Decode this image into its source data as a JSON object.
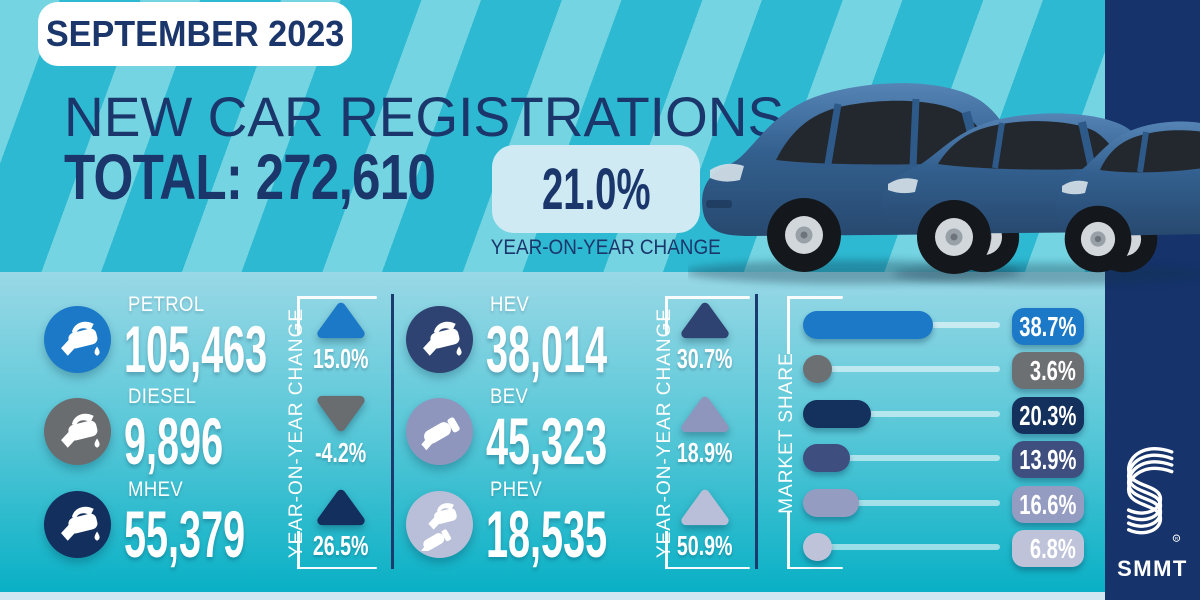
{
  "header": {
    "badge": "SEPTEMBER 2023",
    "title": "NEW CAR REGISTRATIONS",
    "total_label": "TOTAL:",
    "total_value": "272,610",
    "yoy_value": "21.0%",
    "yoy_caption": "YEAR-ON-YEAR CHANGE"
  },
  "labels": {
    "yoy_column": "YEAR-ON-YEAR CHANGE",
    "market_share": "MARKET SHARE"
  },
  "fuel_stats": [
    {
      "id": "petrol",
      "label": "PETROL",
      "value": "105,463",
      "change": "15.0%",
      "direction": "up",
      "color": "#1b79c8",
      "icon": "fuel-pump-nozzle"
    },
    {
      "id": "diesel",
      "label": "DIESEL",
      "value": "9,896",
      "change": "-4.2%",
      "direction": "down",
      "color": "#6a6d70",
      "icon": "fuel-pump-nozzle"
    },
    {
      "id": "mhev",
      "label": "MHEV",
      "value": "55,379",
      "change": "26.5%",
      "direction": "up",
      "color": "#132f5e",
      "icon": "fuel-pump-nozzle"
    },
    {
      "id": "hev",
      "label": "HEV",
      "value": "38,014",
      "change": "30.7%",
      "direction": "up",
      "color": "#2e4371",
      "icon": "fuel-pump-nozzle"
    },
    {
      "id": "bev",
      "label": "BEV",
      "value": "45,323",
      "change": "18.9%",
      "direction": "up",
      "color": "#8e96bd",
      "icon": "charging-plug"
    },
    {
      "id": "phev",
      "label": "PHEV",
      "value": "18,535",
      "change": "50.9%",
      "direction": "up",
      "color": "#b9bfd8",
      "icon": "nozzle-and-plug"
    }
  ],
  "market_share": {
    "items": [
      {
        "fuel": "PETROL",
        "value": "38.7%",
        "pct": 38.7,
        "color": "#1b79c8"
      },
      {
        "fuel": "DIESEL",
        "value": "3.6%",
        "pct": 3.6,
        "color": "#6d7073"
      },
      {
        "fuel": "MHEV",
        "value": "20.3%",
        "pct": 20.3,
        "color": "#14305c"
      },
      {
        "fuel": "HEV",
        "value": "13.9%",
        "pct": 13.9,
        "color": "#3e4e7f"
      },
      {
        "fuel": "BEV",
        "value": "16.6%",
        "pct": 16.6,
        "color": "#949cc2"
      },
      {
        "fuel": "PHEV",
        "value": "6.8%",
        "pct": 6.8,
        "color": "#bec3da"
      }
    ]
  },
  "logo": {
    "name": "SMMT"
  },
  "colors": {
    "navy": "#1a366b",
    "teal_base": "#2eb9d2",
    "teal_stripe": "#74d4e2",
    "panel_top": "#99d8e6",
    "panel_bottom": "#09b0c5",
    "bottom_strip": "#cfe7f2",
    "yoy_box_bg": "#cfeaf3",
    "sidebar": "#16336b"
  },
  "chart_data": [
    {
      "type": "table",
      "title": "NEW CAR REGISTRATIONS - SEPTEMBER 2023",
      "total_registrations": 272610,
      "total_yoy_change_pct": 21.0,
      "categories": [
        "PETROL",
        "DIESEL",
        "MHEV",
        "HEV",
        "BEV",
        "PHEV"
      ],
      "series": [
        {
          "name": "registrations",
          "values": [
            105463,
            9896,
            55379,
            38014,
            45323,
            18535
          ]
        },
        {
          "name": "yoy_change_pct",
          "values": [
            15.0,
            -4.2,
            26.5,
            30.7,
            18.9,
            50.9
          ]
        }
      ]
    },
    {
      "type": "bar",
      "orientation": "horizontal",
      "title": "MARKET SHARE",
      "categories": [
        "PETROL",
        "DIESEL",
        "MHEV",
        "HEV",
        "BEV",
        "PHEV"
      ],
      "values": [
        38.7,
        3.6,
        20.3,
        13.9,
        16.6,
        6.8
      ],
      "xlabel": "",
      "ylabel": "MARKET SHARE",
      "xlim": [
        0,
        100
      ]
    }
  ]
}
